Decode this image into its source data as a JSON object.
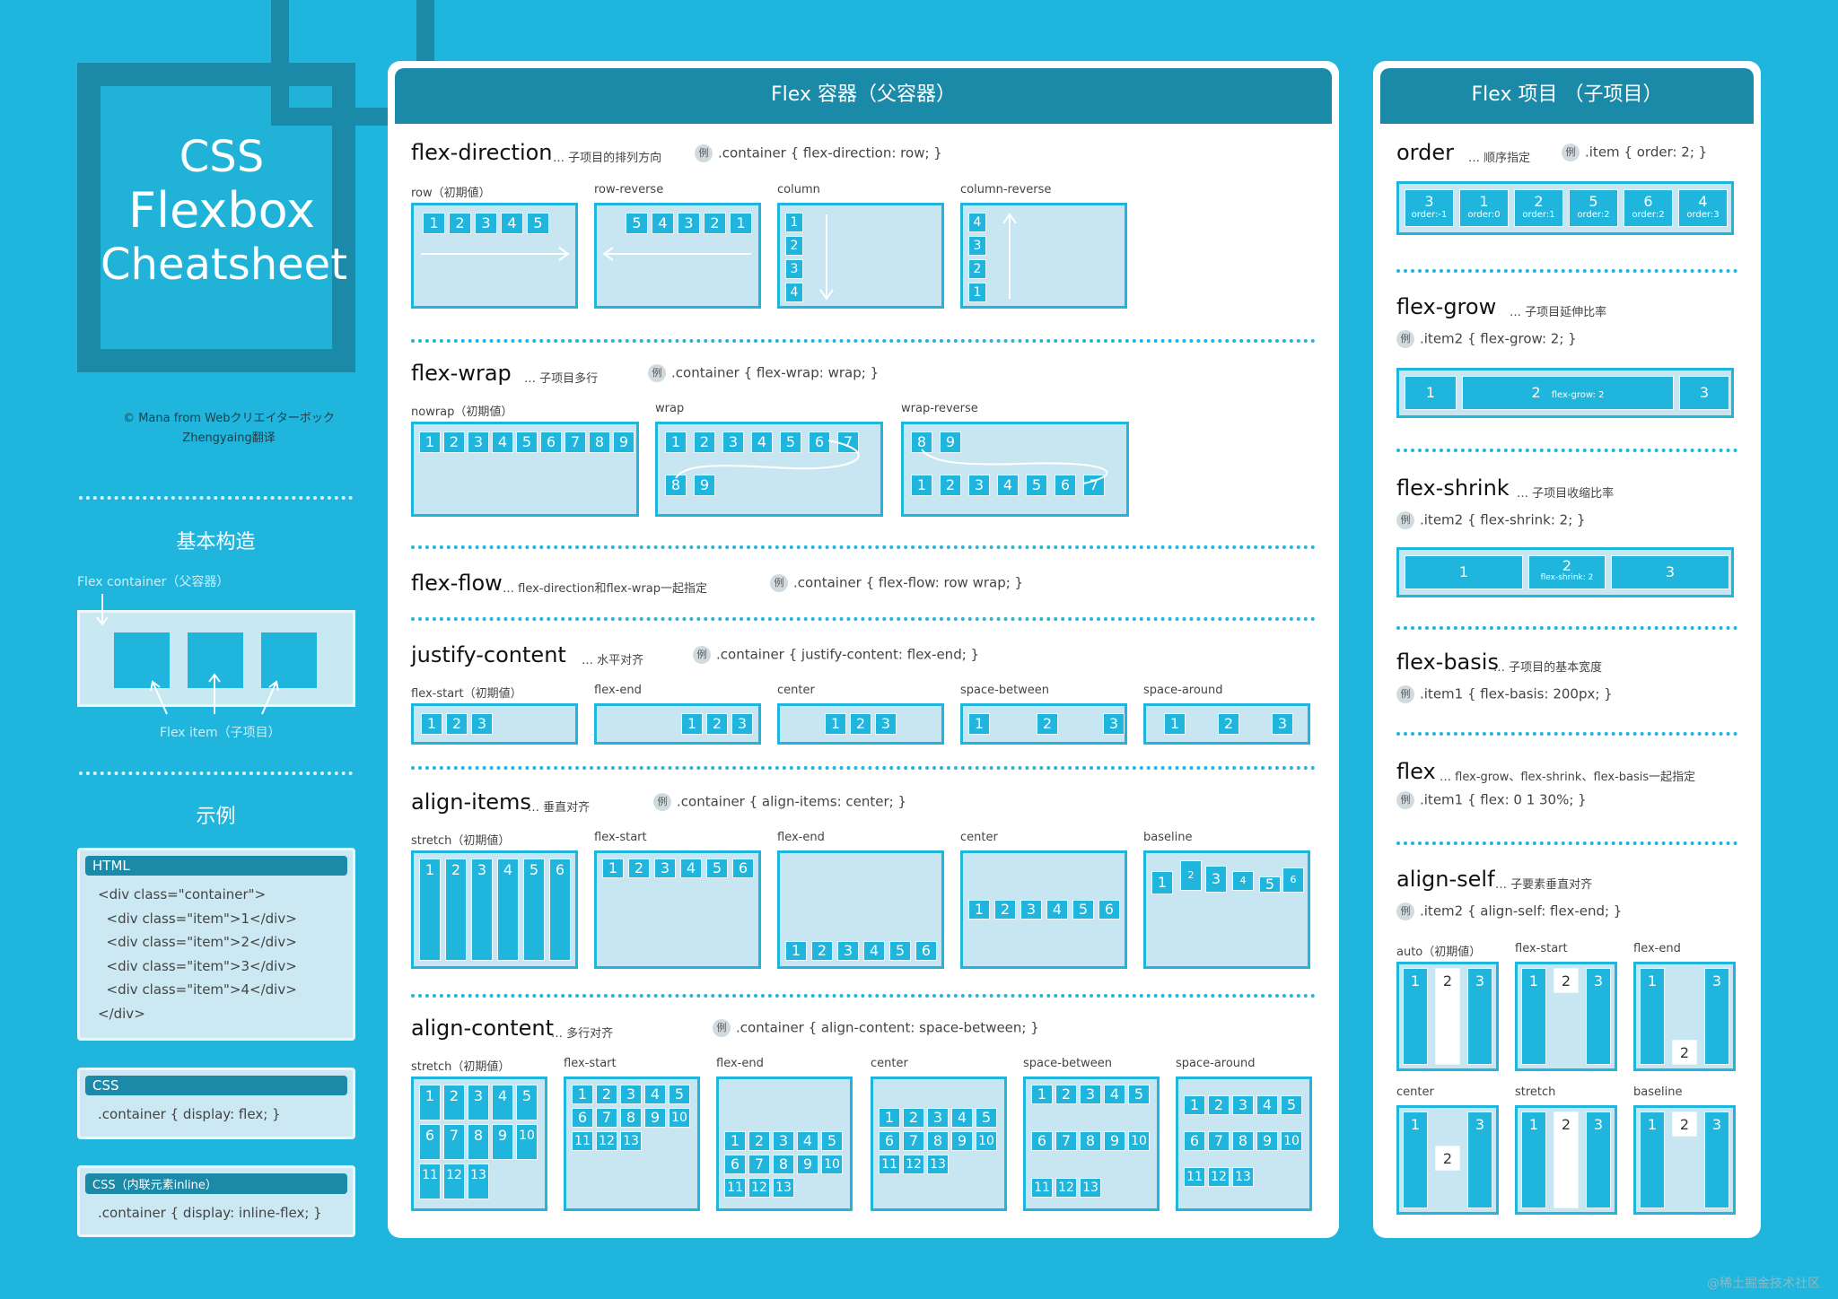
{
  "logo": {
    "line1": "CSS",
    "line2": "Flexbox",
    "line3": "Cheatsheet"
  },
  "credit": {
    "line1": "© Mana from Webクリエイターボック",
    "line2": "Zhengyaing翻译"
  },
  "basic": {
    "title": "基本构造",
    "container_label": "Flex container（父容器）",
    "item_label": "Flex item（子项目）"
  },
  "example": {
    "title": "示例",
    "html_head": "HTML",
    "html_code": "<div class=\"container\">\n  <div class=\"item\">1</div>\n  <div class=\"item\">2</div>\n  <div class=\"item\">3</div>\n  <div class=\"item\">4</div>\n</div>",
    "css_head": "CSS",
    "css_code": ".container { display: flex; }",
    "css2_head": "CSS（内联元素inline）",
    "css2_code": ".container { display: inline-flex; }"
  },
  "container": {
    "title": "Flex 容器（父容器）",
    "fd": {
      "name": "flex-direction",
      "desc": "… 子项目的排列方向",
      "ex": "例",
      "code": ".container { flex-direction: row; }",
      "labels": [
        "row（初期値）",
        "row-reverse",
        "column",
        "column-reverse"
      ]
    },
    "fw": {
      "name": "flex-wrap",
      "desc": "… 子项目多行",
      "ex": "例",
      "code": ".container { flex-wrap: wrap; }",
      "labels": [
        "nowrap（初期値）",
        "wrap",
        "wrap-reverse"
      ]
    },
    "ff": {
      "name": "flex-flow",
      "desc": "… flex-direction和flex-wrap一起指定",
      "ex": "例",
      "code": ".container { flex-flow: row wrap; }"
    },
    "jc": {
      "name": "justify-content",
      "desc": "… 水平对齐",
      "ex": "例",
      "code": ".container { justify-content: flex-end; }",
      "labels": [
        "flex-start（初期値）",
        "flex-end",
        "center",
        "space-between",
        "space-around"
      ]
    },
    "ai": {
      "name": "align-items",
      "desc": "… 垂直对齐",
      "ex": "例",
      "code": ".container { align-items: center; }",
      "labels": [
        "stretch（初期値）",
        "flex-start",
        "flex-end",
        "center",
        "baseline"
      ]
    },
    "ac": {
      "name": "align-content",
      "desc": "… 多行对齐",
      "ex": "例",
      "code": ".container { align-content: space-between; }",
      "labels": [
        "stretch（初期値）",
        "flex-start",
        "flex-end",
        "center",
        "space-between",
        "space-around"
      ]
    }
  },
  "items": {
    "title": "Flex 项目 （子项目）",
    "order": {
      "name": "order",
      "desc": "… 顺序指定",
      "ex": "例",
      "code": ".item { order: 2; }",
      "nums": [
        "3",
        "1",
        "2",
        "5",
        "6",
        "4"
      ],
      "orders": [
        "order:-1",
        "order:0",
        "order:1",
        "order:2",
        "order:2",
        "order:3"
      ]
    },
    "grow": {
      "name": "flex-grow",
      "desc": "… 子项目延伸比率",
      "ex": "例",
      "code": ".item2 { flex-grow: 2; }",
      "mid": "2",
      "midsub": "flex-grow: 2"
    },
    "shrink": {
      "name": "flex-shrink",
      "desc": "… 子项目收缩比率",
      "ex": "例",
      "code": ".item2 { flex-shrink: 2; }",
      "mid": "2",
      "midsub": "flex-shrink: 2"
    },
    "basis": {
      "name": "flex-basis",
      "desc": "… 子项目的基本宽度",
      "ex": "例",
      "code": ".item1 { flex-basis: 200px; }"
    },
    "flex": {
      "name": "flex",
      "desc": "… flex-grow、flex-shrink、flex-basis一起指定",
      "ex": "例",
      "code": ".item1 { flex: 0 1 30%; }"
    },
    "as": {
      "name": "align-self",
      "desc": "… 子要素垂直对齐",
      "ex": "例",
      "code": ".item2 { align-self: flex-end; }",
      "labels": [
        "auto（初期値）",
        "flex-start",
        "flex-end",
        "center",
        "stretch",
        "baseline"
      ]
    }
  },
  "watermark": "@稀土掘金技术社区"
}
